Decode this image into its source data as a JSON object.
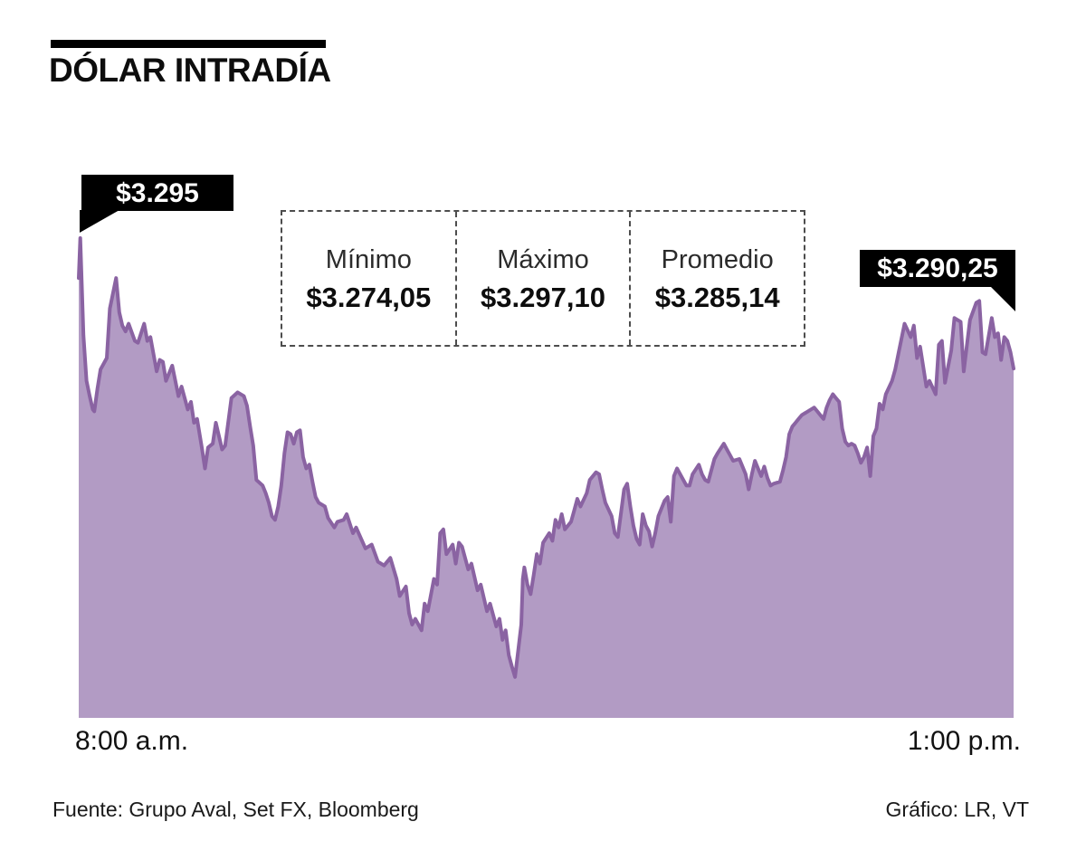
{
  "header": {
    "title": "DÓLAR INTRADÍA",
    "accent_bar_color": "#000000"
  },
  "chart_data": {
    "type": "area",
    "title": "DÓLAR INTRADÍA",
    "xlabel": "",
    "ylabel": "",
    "grid": false,
    "legend": false,
    "x_axis": {
      "start_label": "8:00 a.m.",
      "end_label": "1:00 p.m.",
      "unit": "minutes since 8:00 a.m.",
      "t_min": 0,
      "t_max": 300
    },
    "ylim": [
      3271.9,
      3297.1
    ],
    "annotations": {
      "open": {
        "label": "$3.295",
        "value": 3295.0
      },
      "close": {
        "label": "$3.290,25",
        "value": 3290.25
      }
    },
    "stats": [
      {
        "label": "Mínimo",
        "value": "$3.274,05"
      },
      {
        "label": "Máximo",
        "value": "$3.297,10"
      },
      {
        "label": "Promedio",
        "value": "$3.285,14"
      }
    ],
    "series": [
      {
        "name": "Dólar intradía (COP por USD)",
        "line_color": "#8a63a2",
        "fill_color": "#b29bc4",
        "points": [
          [
            0,
            3295.0
          ],
          [
            0.5,
            3297.1
          ],
          [
            1.5,
            3292.0
          ],
          [
            2.5,
            3289.6
          ],
          [
            3.5,
            3288.8
          ],
          [
            4.5,
            3288.1
          ],
          [
            5,
            3288.0
          ],
          [
            6,
            3289.2
          ],
          [
            7,
            3290.2
          ],
          [
            9,
            3290.8
          ],
          [
            10,
            3293.4
          ],
          [
            12,
            3295.0
          ],
          [
            13,
            3293.2
          ],
          [
            14,
            3292.5
          ],
          [
            15,
            3292.2
          ],
          [
            16,
            3292.6
          ],
          [
            18,
            3291.7
          ],
          [
            19,
            3291.6
          ],
          [
            21,
            3292.6
          ],
          [
            22,
            3291.7
          ],
          [
            23,
            3291.9
          ],
          [
            25,
            3290.1
          ],
          [
            26,
            3290.7
          ],
          [
            27,
            3290.6
          ],
          [
            28,
            3289.6
          ],
          [
            30,
            3290.4
          ],
          [
            32,
            3288.8
          ],
          [
            33,
            3289.3
          ],
          [
            35,
            3288.1
          ],
          [
            36,
            3288.5
          ],
          [
            37,
            3287.4
          ],
          [
            38,
            3287.6
          ],
          [
            39.5,
            3286.1
          ],
          [
            40.5,
            3285.0
          ],
          [
            41.5,
            3286.1
          ],
          [
            43,
            3286.3
          ],
          [
            44,
            3287.4
          ],
          [
            46,
            3286.0
          ],
          [
            47,
            3286.2
          ],
          [
            49,
            3288.7
          ],
          [
            51,
            3289.0
          ],
          [
            53,
            3288.8
          ],
          [
            54,
            3288.3
          ],
          [
            55,
            3287.2
          ],
          [
            56,
            3286.2
          ],
          [
            57,
            3284.4
          ],
          [
            59,
            3284.1
          ],
          [
            60,
            3283.7
          ],
          [
            61,
            3283.2
          ],
          [
            62,
            3282.5
          ],
          [
            63,
            3282.3
          ],
          [
            64,
            3283.0
          ],
          [
            65,
            3284.1
          ],
          [
            66,
            3285.8
          ],
          [
            67,
            3286.9
          ],
          [
            68,
            3286.8
          ],
          [
            69,
            3286.3
          ],
          [
            70,
            3286.9
          ],
          [
            71,
            3287.0
          ],
          [
            72,
            3285.6
          ],
          [
            73,
            3285.0
          ],
          [
            74,
            3285.2
          ],
          [
            75,
            3284.3
          ],
          [
            76,
            3283.5
          ],
          [
            77,
            3283.2
          ],
          [
            79,
            3283.0
          ],
          [
            80,
            3282.4
          ],
          [
            82,
            3281.9
          ],
          [
            83,
            3282.2
          ],
          [
            85,
            3282.3
          ],
          [
            86,
            3282.6
          ],
          [
            88,
            3281.6
          ],
          [
            89,
            3281.9
          ],
          [
            92,
            3280.8
          ],
          [
            94,
            3281.0
          ],
          [
            96,
            3280.1
          ],
          [
            98,
            3279.9
          ],
          [
            100,
            3280.3
          ],
          [
            102,
            3279.2
          ],
          [
            103,
            3278.3
          ],
          [
            105,
            3278.8
          ],
          [
            106,
            3277.4
          ],
          [
            107,
            3276.8
          ],
          [
            108,
            3277.1
          ],
          [
            110,
            3276.5
          ],
          [
            111,
            3277.9
          ],
          [
            112,
            3277.5
          ],
          [
            114,
            3279.2
          ],
          [
            115,
            3278.9
          ],
          [
            116,
            3281.6
          ],
          [
            117,
            3281.8
          ],
          [
            118,
            3280.5
          ],
          [
            120,
            3281.0
          ],
          [
            121,
            3280.0
          ],
          [
            122,
            3281.1
          ],
          [
            123,
            3280.9
          ],
          [
            125,
            3279.7
          ],
          [
            126,
            3280.0
          ],
          [
            128,
            3278.6
          ],
          [
            129,
            3278.9
          ],
          [
            131,
            3277.5
          ],
          [
            132,
            3277.9
          ],
          [
            134,
            3276.7
          ],
          [
            135,
            3277.1
          ],
          [
            136,
            3276.0
          ],
          [
            137,
            3276.5
          ],
          [
            138,
            3275.2
          ],
          [
            139,
            3274.6
          ],
          [
            140,
            3274.05
          ],
          [
            141,
            3275.4
          ],
          [
            142,
            3276.8
          ],
          [
            142.5,
            3279.2
          ],
          [
            143,
            3279.8
          ],
          [
            144,
            3278.9
          ],
          [
            145,
            3278.4
          ],
          [
            146,
            3279.4
          ],
          [
            147,
            3280.5
          ],
          [
            148,
            3280.0
          ],
          [
            149,
            3281.1
          ],
          [
            151,
            3281.6
          ],
          [
            152,
            3281.2
          ],
          [
            153,
            3282.3
          ],
          [
            154,
            3281.9
          ],
          [
            155,
            3282.6
          ],
          [
            156,
            3281.8
          ],
          [
            158,
            3282.2
          ],
          [
            159,
            3282.8
          ],
          [
            160,
            3283.4
          ],
          [
            161,
            3283.0
          ],
          [
            163,
            3283.7
          ],
          [
            164,
            3284.4
          ],
          [
            166,
            3284.8
          ],
          [
            167,
            3284.7
          ],
          [
            168,
            3283.9
          ],
          [
            169,
            3283.2
          ],
          [
            171,
            3282.5
          ],
          [
            172,
            3281.6
          ],
          [
            173,
            3281.4
          ],
          [
            175,
            3283.9
          ],
          [
            176,
            3284.2
          ],
          [
            177,
            3283.0
          ],
          [
            178,
            3282.0
          ],
          [
            179,
            3281.3
          ],
          [
            180,
            3281.0
          ],
          [
            181,
            3282.6
          ],
          [
            182,
            3282.0
          ],
          [
            183,
            3281.7
          ],
          [
            184,
            3280.9
          ],
          [
            185,
            3281.6
          ],
          [
            186,
            3282.5
          ],
          [
            188,
            3283.3
          ],
          [
            189,
            3283.5
          ],
          [
            190,
            3282.2
          ],
          [
            191,
            3284.6
          ],
          [
            192,
            3285.0
          ],
          [
            194,
            3284.4
          ],
          [
            195,
            3284.1
          ],
          [
            196,
            3284.1
          ],
          [
            197,
            3284.7
          ],
          [
            199,
            3285.2
          ],
          [
            200,
            3284.7
          ],
          [
            201,
            3284.4
          ],
          [
            202,
            3284.3
          ],
          [
            204,
            3285.5
          ],
          [
            205,
            3285.8
          ],
          [
            207,
            3286.3
          ],
          [
            208,
            3286.0
          ],
          [
            209,
            3285.7
          ],
          [
            210,
            3285.4
          ],
          [
            212,
            3285.5
          ],
          [
            214,
            3284.7
          ],
          [
            215,
            3283.9
          ],
          [
            216,
            3284.7
          ],
          [
            217,
            3285.4
          ],
          [
            218,
            3285.0
          ],
          [
            219,
            3284.6
          ],
          [
            220,
            3285.1
          ],
          [
            221,
            3284.5
          ],
          [
            222,
            3284.1
          ],
          [
            223,
            3284.2
          ],
          [
            225,
            3284.3
          ],
          [
            226,
            3284.9
          ],
          [
            227,
            3285.6
          ],
          [
            228,
            3286.8
          ],
          [
            229,
            3287.2
          ],
          [
            230,
            3287.4
          ],
          [
            231,
            3287.6
          ],
          [
            232,
            3287.8
          ],
          [
            233,
            3287.9
          ],
          [
            234,
            3288.0
          ],
          [
            236,
            3288.2
          ],
          [
            237,
            3288.0
          ],
          [
            238,
            3287.8
          ],
          [
            239,
            3287.6
          ],
          [
            240,
            3288.2
          ],
          [
            241,
            3288.6
          ],
          [
            242,
            3288.9
          ],
          [
            243,
            3288.7
          ],
          [
            244,
            3288.5
          ],
          [
            245,
            3287.1
          ],
          [
            246,
            3286.4
          ],
          [
            247,
            3286.2
          ],
          [
            248,
            3286.3
          ],
          [
            249,
            3286.2
          ],
          [
            250,
            3285.8
          ],
          [
            251,
            3285.3
          ],
          [
            252,
            3285.6
          ],
          [
            253,
            3286.1
          ],
          [
            254,
            3284.6
          ],
          [
            255,
            3286.7
          ],
          [
            256,
            3287.1
          ],
          [
            257,
            3288.4
          ],
          [
            258,
            3288.1
          ],
          [
            259,
            3288.9
          ],
          [
            261,
            3289.6
          ],
          [
            262,
            3290.2
          ],
          [
            263,
            3291.0
          ],
          [
            265,
            3292.6
          ],
          [
            267,
            3291.9
          ],
          [
            268,
            3292.5
          ],
          [
            269,
            3290.8
          ],
          [
            270,
            3291.4
          ],
          [
            272,
            3289.3
          ],
          [
            273,
            3289.6
          ],
          [
            275,
            3288.9
          ],
          [
            276,
            3291.5
          ],
          [
            277,
            3291.7
          ],
          [
            278,
            3289.5
          ],
          [
            280,
            3291.2
          ],
          [
            281,
            3292.9
          ],
          [
            283,
            3292.7
          ],
          [
            284,
            3290.1
          ],
          [
            286,
            3292.8
          ],
          [
            288,
            3293.7
          ],
          [
            289,
            3293.8
          ],
          [
            290,
            3291.1
          ],
          [
            291,
            3291.0
          ],
          [
            293,
            3292.9
          ],
          [
            294,
            3291.9
          ],
          [
            295,
            3292.1
          ],
          [
            296,
            3290.7
          ],
          [
            297,
            3291.9
          ],
          [
            298,
            3291.7
          ],
          [
            299,
            3291.1
          ],
          [
            300,
            3290.25
          ]
        ]
      }
    ]
  },
  "footer": {
    "source": "Fuente: Grupo Aval, Set FX, Bloomberg",
    "credit": "Gráfico: LR, VT"
  }
}
